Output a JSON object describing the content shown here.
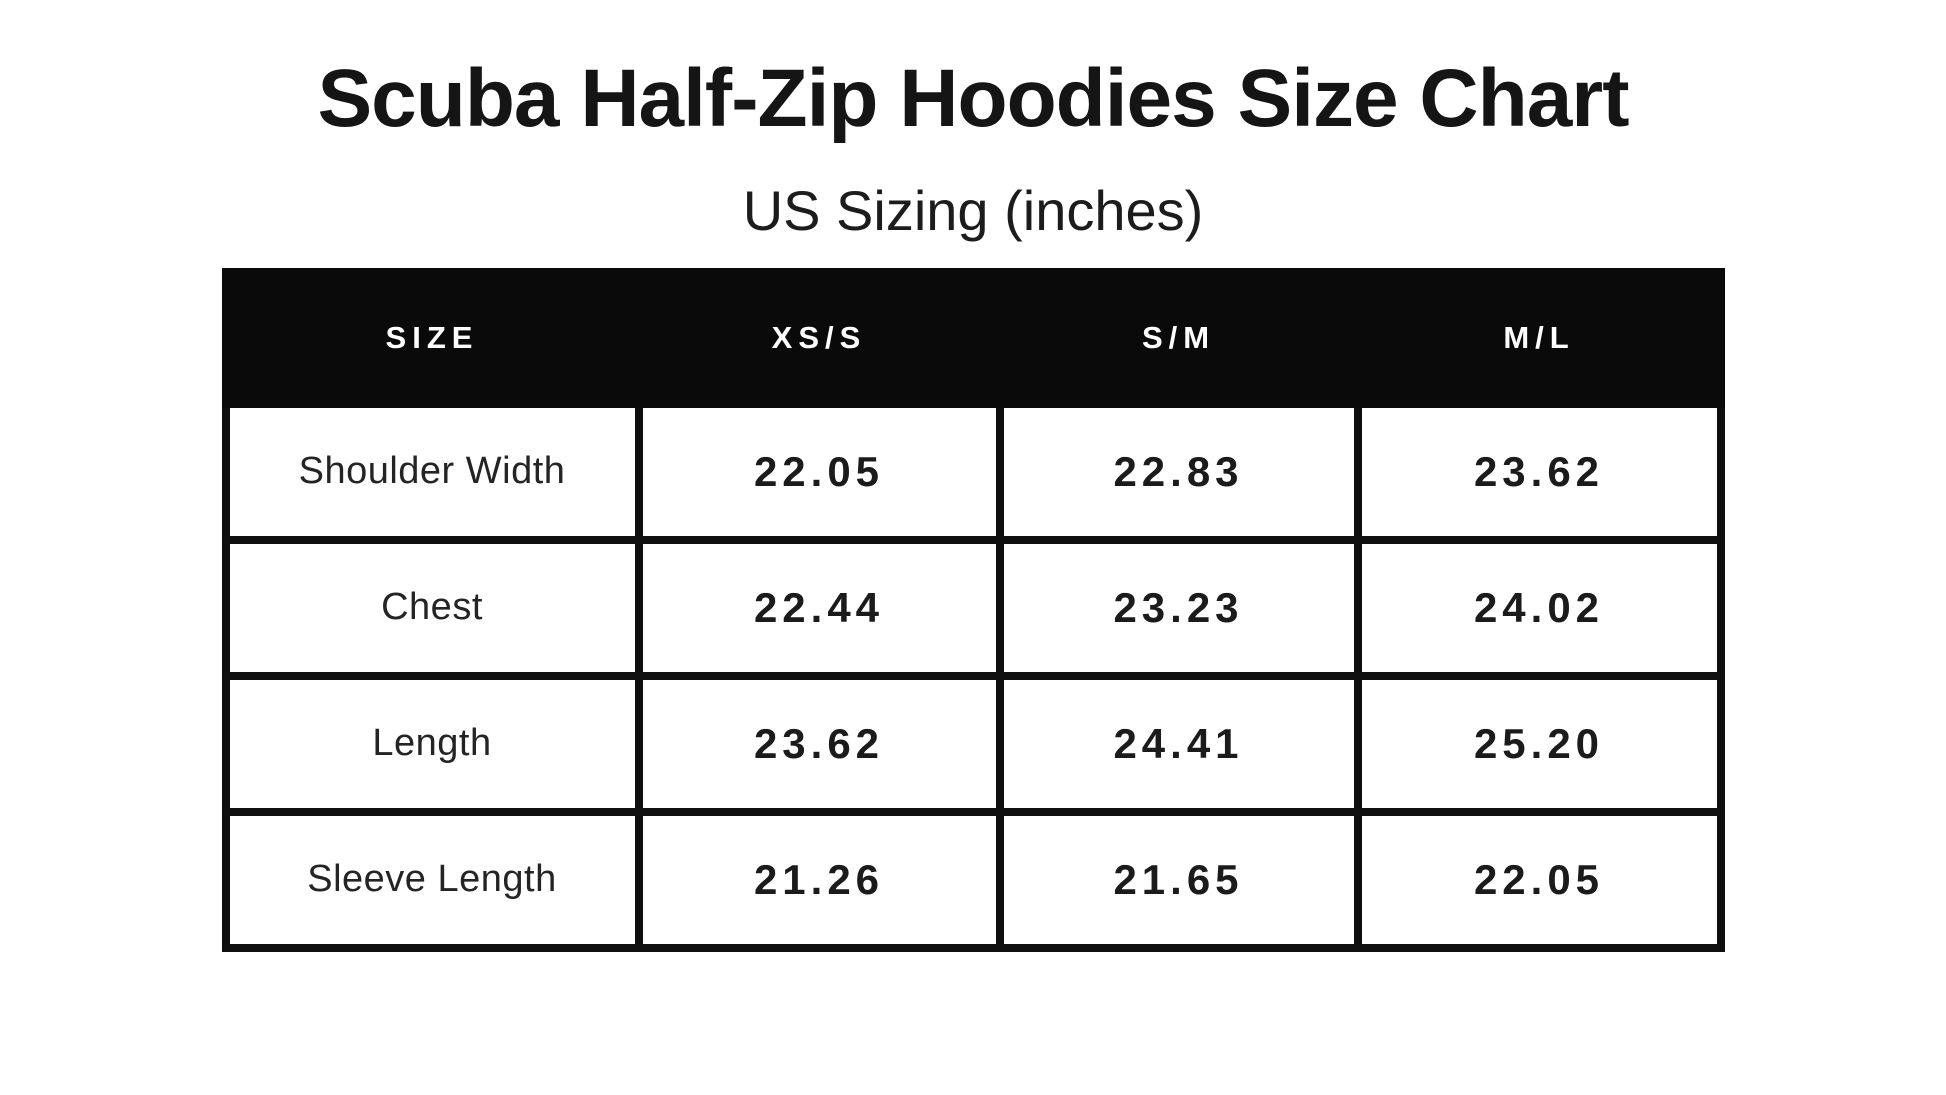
{
  "header": {
    "title": "Scuba Half-Zip Hoodies Size Chart",
    "subtitle": "US Sizing (inches)"
  },
  "table": {
    "columns": [
      "SIZE",
      "XS/S",
      "S/M",
      "M/L"
    ],
    "rows": [
      {
        "label": "Shoulder Width",
        "values": [
          "22.05",
          "22.83",
          "23.62"
        ]
      },
      {
        "label": "Chest",
        "values": [
          "22.44",
          "23.23",
          "24.02"
        ]
      },
      {
        "label": "Length",
        "values": [
          "23.62",
          "24.41",
          "25.20"
        ]
      },
      {
        "label": "Sleeve Length",
        "values": [
          "21.26",
          "21.65",
          "22.05"
        ]
      }
    ],
    "units": "inches",
    "colors": {
      "header_background": "#0a0a0a",
      "header_text": "#ffffff",
      "border": "#0f0f0f",
      "cell_background": "#ffffff",
      "label_text": "#242424",
      "value_text": "#1b1b1b",
      "page_background": "#ffffff"
    }
  }
}
